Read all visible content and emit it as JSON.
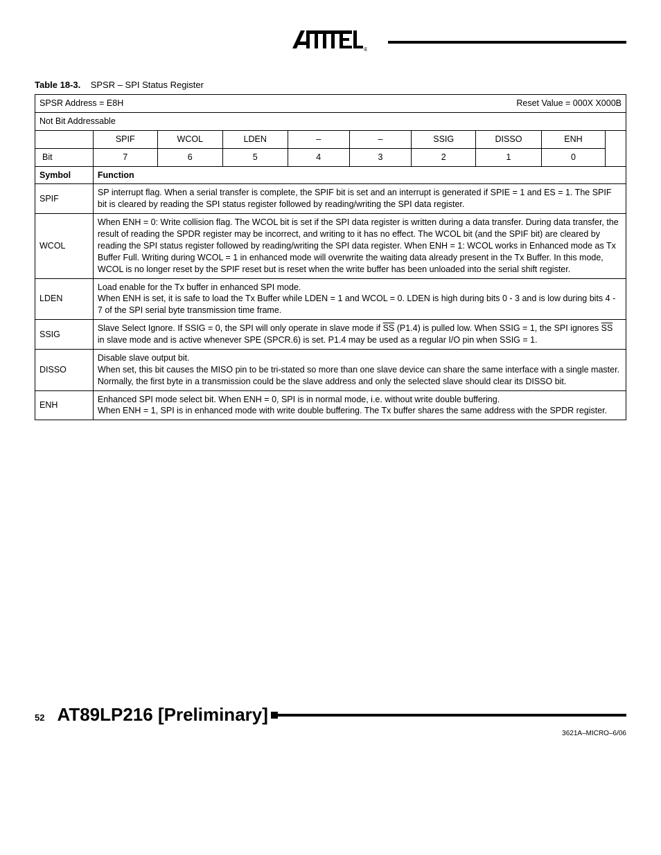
{
  "caption": {
    "label": "Table 18-3.",
    "title": "SPSR – SPI Status Register"
  },
  "header": {
    "address": "SPSR Address = E8H",
    "reset": "Reset Value = 000X X000B",
    "addr_note": "Not Bit Addressable"
  },
  "bitnames": [
    "SPIF",
    "WCOL",
    "LDEN",
    "–",
    "–",
    "SSIG",
    "DISSO",
    "ENH"
  ],
  "bitrow_label": "Bit",
  "bitnums": [
    "7",
    "6",
    "5",
    "4",
    "3",
    "2",
    "1",
    "0"
  ],
  "func_header": {
    "symbol": "Symbol",
    "function": "Function"
  },
  "rows": [
    {
      "sym": "SPIF",
      "desc": "SP interrupt flag. When a serial transfer is complete, the SPIF bit is set and an interrupt is generated if SPIE = 1 and ES = 1. The SPIF bit is cleared by reading the SPI status register followed by reading/writing the SPI data register."
    },
    {
      "sym": "WCOL",
      "desc": "When ENH = 0: Write collision flag. The WCOL bit is set if the SPI data register is written during a data transfer. During data transfer, the result of reading the SPDR register may be incorrect, and writing to it has no effect. The WCOL bit (and the SPIF bit) are cleared by reading the SPI status register followed by reading/writing the SPI data register. When ENH = 1: WCOL works in Enhanced mode as Tx Buffer Full. Writing during WCOL = 1 in enhanced mode will overwrite the waiting data already present in the Tx Buffer. In this mode, WCOL is no longer reset by the SPIF reset but is reset when the write buffer has been unloaded into the serial shift register."
    },
    {
      "sym": "LDEN",
      "desc": "Load enable for the Tx buffer in enhanced SPI mode.\nWhen ENH is set, it is safe to load the Tx Buffer while LDEN = 1 and WCOL = 0. LDEN is high during bits 0 - 3 and is low during bits 4 - 7 of the SPI serial byte transmission time frame."
    },
    {
      "sym": "SSIG",
      "desc_html": "Slave Select Ignore. If SSIG = 0, the SPI will only operate in slave mode if <span class=\"overline\">SS</span> (P1.4) is pulled low. When SSIG = 1, the SPI ignores <span class=\"overline\">SS</span> in slave mode and is active whenever SPE (SPCR.6) is set. P1.4 may be used as a regular I/O pin when SSIG = 1."
    },
    {
      "sym": "DISSO",
      "desc": "Disable slave output bit.\nWhen set, this bit causes the MISO pin to be tri-stated so more than one slave device can share the same interface with a single master. Normally, the first byte in a transmission could be the slave address and only the selected slave should clear its DISSO bit."
    },
    {
      "sym": "ENH",
      "desc": "Enhanced SPI mode select bit. When ENH = 0, SPI is in normal mode, i.e. without write double buffering.\nWhen ENH = 1, SPI is in enhanced mode with write double buffering. The Tx buffer shares the same address with the SPDR register."
    }
  ],
  "footer": {
    "page": "52",
    "title": "AT89LP216 [Preliminary]",
    "docid": "3621A–MICRO–6/06"
  }
}
